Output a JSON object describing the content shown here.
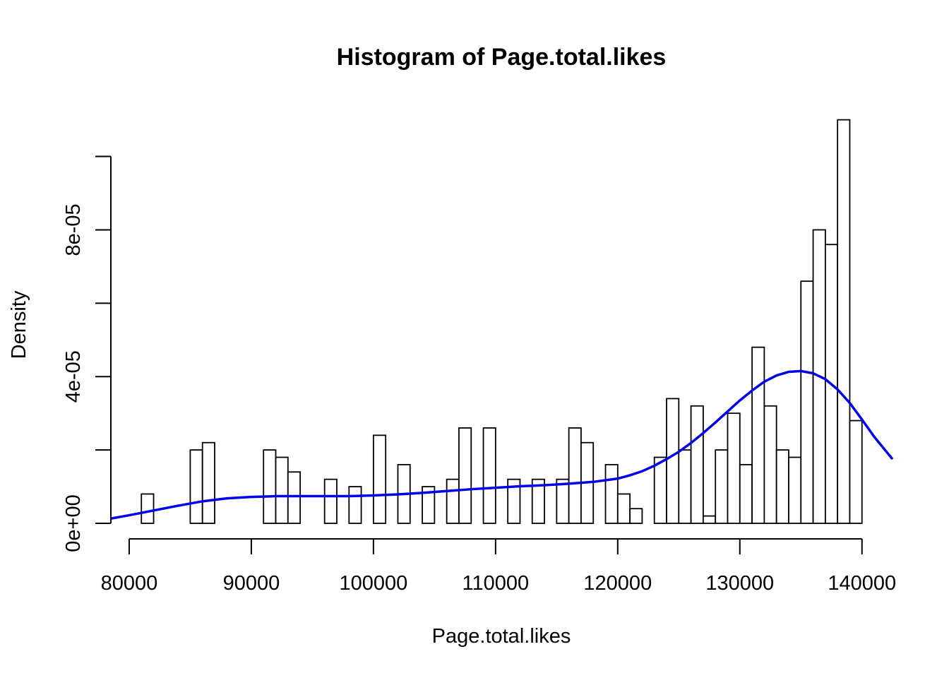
{
  "chart_data": {
    "type": "bar",
    "title": "Histogram of Page.total.likes",
    "xlabel": "Page.total.likes",
    "ylabel": "Density",
    "xlim": [
      78500,
      142500
    ],
    "ylim": [
      0,
      0.000108
    ],
    "x_ticks": [
      80000,
      90000,
      100000,
      110000,
      120000,
      130000,
      140000
    ],
    "x_tick_labels": [
      "80000",
      "90000",
      "100000",
      "110000",
      "120000",
      "130000",
      "140000"
    ],
    "y_ticks": [
      0,
      2e-05,
      4e-05,
      6e-05,
      8e-05,
      0.0001
    ],
    "y_tick_labels": [
      "0e+00",
      "",
      "4e-05",
      "",
      "8e-05",
      ""
    ],
    "bin_width": 1000,
    "bin_start": 81000,
    "values": [
      8e-06,
      0,
      0,
      0,
      2e-05,
      2.2e-05,
      0,
      0,
      0,
      0,
      2e-05,
      1.8e-05,
      1.4e-05,
      0,
      0,
      1.2e-05,
      0,
      1e-05,
      0,
      2.4e-05,
      0,
      1.6e-05,
      0,
      1e-05,
      0,
      1.2e-05,
      2.6e-05,
      0,
      2.6e-05,
      0,
      1.2e-05,
      0,
      1.2e-05,
      0,
      1.2e-05,
      2.6e-05,
      2.2e-05,
      0,
      1.6e-05,
      8e-06,
      4e-06,
      0,
      1.8e-05,
      3.4e-05,
      2e-05,
      3.2e-05,
      2e-06,
      2e-05,
      3e-05,
      1.6e-05,
      4.8e-05,
      3.2e-05,
      2e-05,
      1.8e-05,
      6.6e-05,
      8e-05,
      7.6e-05,
      0.00011,
      2.8e-05
    ],
    "density_color": "#0000ee",
    "density_curve": {
      "x": [
        78500,
        80000,
        82000,
        84000,
        86000,
        88000,
        90000,
        92000,
        94000,
        96000,
        98000,
        100000,
        102000,
        104000,
        106000,
        108000,
        110000,
        112000,
        114000,
        116000,
        118000,
        120000,
        121000,
        122000,
        123000,
        124000,
        125000,
        126000,
        127000,
        128000,
        129000,
        130000,
        131000,
        132000,
        133000,
        134000,
        135000,
        136000,
        137000,
        138000,
        139000,
        140000,
        141000,
        142500
      ],
      "y": [
        1.3e-06,
        2.2e-06,
        3.5e-06,
        4.8e-06,
        6e-06,
        6.8e-06,
        7.2e-06,
        7.4e-06,
        7.4e-06,
        7.4e-06,
        7.4e-06,
        7.6e-06,
        7.9e-06,
        8.3e-06,
        8.8e-06,
        9.3e-06,
        9.7e-06,
        1.01e-05,
        1.04e-05,
        1.08e-05,
        1.13e-05,
        1.22e-05,
        1.31e-05,
        1.42e-05,
        1.57e-05,
        1.75e-05,
        1.95e-05,
        2.19e-05,
        2.46e-05,
        2.75e-05,
        3.05e-05,
        3.35e-05,
        3.62e-05,
        3.86e-05,
        4.03e-05,
        4.13e-05,
        4.15e-05,
        4.09e-05,
        3.93e-05,
        3.65e-05,
        3.28e-05,
        2.83e-05,
        2.36e-05,
        1.75e-05
      ]
    },
    "grid": false
  }
}
